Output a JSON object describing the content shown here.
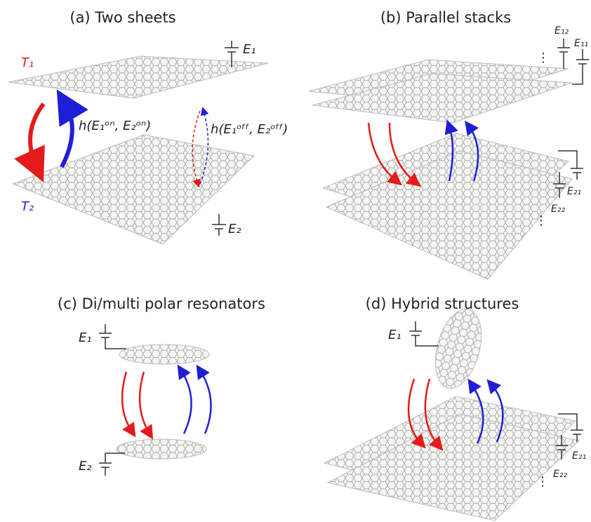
{
  "panels": [
    {
      "title": "(a) Two sheets",
      "labels": {
        "t1": "T₁",
        "t2": "T₂",
        "e1": "E₁",
        "e2": "E₂",
        "h_on": "h(E₁ᵒⁿ, E₂ᵒⁿ)",
        "h_off": "h(E₁ᵒᶠᶠ, E₂ᵒᶠᶠ)"
      }
    },
    {
      "title": "(b) Parallel stacks",
      "labels": {
        "e12": "E₁₂",
        "e11": "E₁₁",
        "e21": "E₂₁",
        "e22": "E₂₂",
        "dots_top": "⋮",
        "dots_bottom": "⋮"
      }
    },
    {
      "title": "(c) Di/multi polar resonators",
      "labels": {
        "e1": "E₁",
        "e2": "E₂"
      }
    },
    {
      "title": "(d) Hybrid structures",
      "labels": {
        "e1": "E₁",
        "e21": "E₂₁",
        "e22": "E₂₂",
        "dots": "⋮"
      }
    }
  ]
}
